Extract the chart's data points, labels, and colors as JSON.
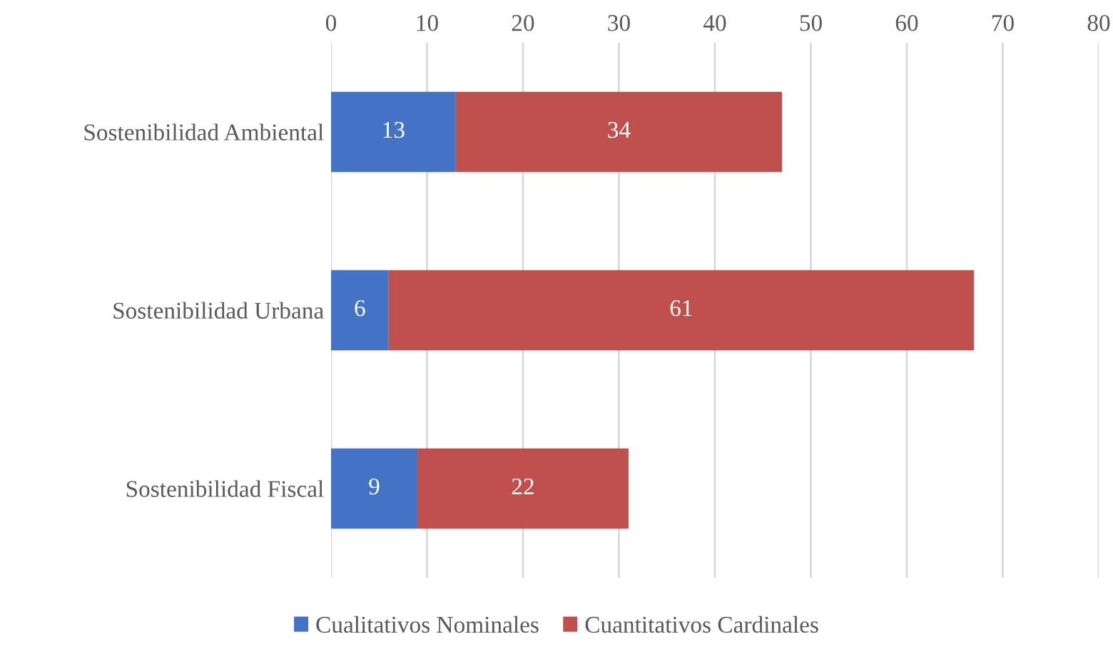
{
  "chart_data": {
    "type": "bar",
    "orientation": "horizontal",
    "stacked": true,
    "categories": [
      "Sostenibilidad Ambiental",
      "Sostenibilidad Urbana",
      "Sostenibilidad Fiscal"
    ],
    "series": [
      {
        "name": "Cualitativos Nominales",
        "color": "#4472c4",
        "values": [
          13,
          6,
          9
        ]
      },
      {
        "name": "Cuantitativos Cardinales",
        "color": "#c0504d",
        "values": [
          34,
          61,
          22
        ]
      }
    ],
    "xlim": [
      0,
      80
    ],
    "xticks": [
      0,
      10,
      20,
      30,
      40,
      50,
      60,
      70,
      80
    ],
    "grid": "x",
    "legend": "bottom",
    "data_labels": true
  }
}
